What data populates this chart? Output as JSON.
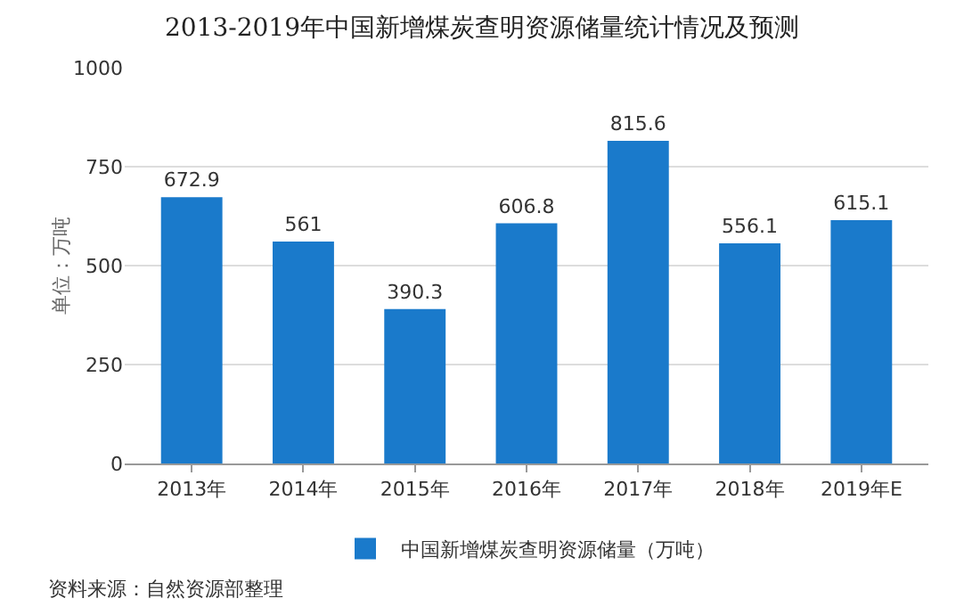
{
  "chart_data": {
    "type": "bar",
    "title": "2013-2019年中国新增煤炭查明资源储量统计情况及预测",
    "ylabel": "单位：万吨",
    "categories": [
      "2013年",
      "2014年",
      "2015年",
      "2016年",
      "2017年",
      "2018年",
      "2019年E"
    ],
    "series": [
      {
        "name": "中国新增煤炭查明资源储量（万吨）",
        "color": "#1a7acb",
        "values": [
          672.9,
          561,
          390.3,
          606.8,
          815.6,
          556.1,
          615.1
        ]
      }
    ],
    "ylim": [
      0,
      1000
    ],
    "yticks": [
      0,
      250,
      500,
      750,
      1000
    ],
    "grid": "y",
    "legend": "bottom",
    "data_labels": true,
    "annotations": [
      "资料来源：自然资源部整理"
    ]
  }
}
